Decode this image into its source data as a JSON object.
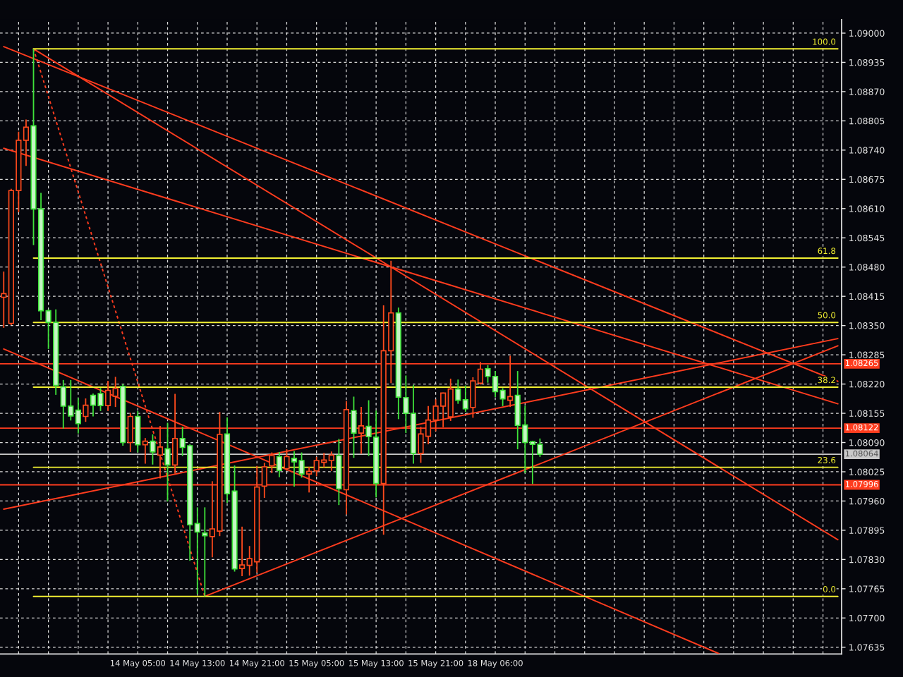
{
  "chart_data": {
    "type": "candlestick",
    "ylim": [
      1.0762,
      1.0903
    ],
    "yticks": [
      {
        "value": 1.07635,
        "label": "1.07635"
      },
      {
        "value": 1.077,
        "label": "1.07700"
      },
      {
        "value": 1.07765,
        "label": "1.07765"
      },
      {
        "value": 1.0783,
        "label": "1.07830"
      },
      {
        "value": 1.07895,
        "label": "1.07895"
      },
      {
        "value": 1.0796,
        "label": "1.07960"
      },
      {
        "value": 1.08025,
        "label": "1.08025"
      },
      {
        "value": 1.0809,
        "label": "1.08090"
      },
      {
        "value": 1.08155,
        "label": "1.08155"
      },
      {
        "value": 1.0822,
        "label": "1.08220"
      },
      {
        "value": 1.08285,
        "label": "1.08285"
      },
      {
        "value": 1.0835,
        "label": "1.08350"
      },
      {
        "value": 1.08415,
        "label": "1.08415"
      },
      {
        "value": 1.0848,
        "label": "1.08480"
      },
      {
        "value": 1.08545,
        "label": "1.08545"
      },
      {
        "value": 1.0861,
        "label": "1.08610"
      },
      {
        "value": 1.08675,
        "label": "1.08675"
      },
      {
        "value": 1.0874,
        "label": "1.08740"
      },
      {
        "value": 1.08805,
        "label": "1.08805"
      },
      {
        "value": 1.0887,
        "label": "1.08870"
      },
      {
        "value": 1.08935,
        "label": "1.08935"
      },
      {
        "value": 1.09,
        "label": "1.09000"
      }
    ],
    "categories": [
      null,
      null,
      null,
      null,
      null,
      null,
      null,
      null,
      null,
      null,
      null,
      null,
      null,
      null,
      null,
      null,
      null,
      null,
      "14 May 05:00",
      null,
      null,
      null,
      null,
      null,
      null,
      null,
      "14 May 13:00",
      null,
      null,
      null,
      null,
      null,
      null,
      null,
      "14 May 21:00",
      null,
      null,
      null,
      null,
      null,
      null,
      null,
      "15 May 05:00",
      null,
      null,
      null,
      null,
      null,
      null,
      null,
      "15 May 13:00",
      null,
      null,
      null,
      null,
      null,
      null,
      null,
      "15 May 21:00",
      null,
      null,
      null,
      null,
      null,
      null,
      null,
      "18 May 06:00",
      null,
      null,
      null,
      null,
      null,
      null,
      null,
      null,
      null,
      null,
      null,
      null,
      null,
      null,
      null,
      null,
      null,
      null,
      null,
      null,
      null,
      null,
      null,
      null,
      null,
      null,
      null,
      null,
      null,
      null,
      null,
      null,
      null,
      null,
      null,
      null,
      null,
      null,
      null,
      null,
      null,
      null,
      null,
      null,
      null,
      null
    ],
    "grid": true,
    "series": [
      {
        "type": "line",
        "color": "#ff3c1e",
        "values": [
          1.0897,
          null,
          null,
          null,
          null,
          null,
          null,
          null,
          null,
          null,
          null,
          null,
          null,
          null,
          null,
          null,
          null,
          null,
          null,
          null,
          null,
          null,
          null,
          null,
          null,
          null,
          null,
          null,
          null,
          null,
          null,
          null,
          null,
          null,
          null,
          null,
          null,
          null,
          null,
          null,
          null,
          null,
          null,
          null,
          null,
          null,
          null,
          null,
          null,
          null,
          null,
          null,
          null,
          null,
          null,
          null,
          null,
          null,
          null,
          null,
          null,
          null,
          null,
          null,
          null,
          null,
          null,
          null,
          null,
          null,
          null,
          null,
          null,
          null,
          null,
          null,
          null,
          null,
          null,
          null,
          null,
          null,
          null,
          null,
          null,
          null,
          null,
          null,
          null,
          null,
          null,
          null,
          null,
          null,
          null,
          null,
          null,
          null,
          null,
          null,
          null,
          null,
          null,
          null,
          null,
          null,
          null,
          null,
          null,
          null,
          null,
          null,
          1.08226
        ]
      },
      {
        "type": "line",
        "color": "#ff3c1e",
        "values": [
          null,
          null,
          null,
          null,
          1.08965,
          null,
          null,
          null,
          null,
          null,
          null,
          null,
          null,
          null,
          null,
          null,
          null,
          null,
          null,
          null,
          null,
          null,
          null,
          null,
          null,
          null,
          null,
          null,
          null,
          null,
          null,
          null,
          null,
          null,
          null,
          null,
          null,
          null,
          null,
          null,
          null,
          null,
          null,
          null,
          null,
          null,
          null,
          null,
          null,
          null,
          null,
          null,
          null,
          null,
          null,
          null,
          null,
          null,
          null,
          null,
          null,
          null,
          null,
          null,
          null,
          null,
          null,
          null,
          null,
          null,
          null,
          null,
          null,
          null,
          null,
          null,
          null,
          null,
          null,
          null,
          null,
          null,
          null,
          null,
          null,
          null,
          null,
          null,
          null,
          null,
          null,
          null,
          null,
          null,
          null,
          null,
          null,
          null,
          null,
          null,
          null,
          null,
          null,
          null,
          null,
          null,
          null,
          null,
          null,
          null,
          null,
          null,
          1.07874
        ]
      },
      {
        "type": "line",
        "color": "#ff3c1e",
        "values": [
          1.08744,
          null,
          null,
          null,
          null,
          null,
          null,
          null,
          null,
          null,
          null,
          null,
          null,
          null,
          null,
          null,
          null,
          null,
          null,
          null,
          null,
          null,
          null,
          null,
          null,
          null,
          null,
          null,
          null,
          null,
          null,
          null,
          null,
          null,
          null,
          null,
          null,
          null,
          null,
          null,
          null,
          null,
          null,
          null,
          null,
          null,
          null,
          null,
          null,
          null,
          null,
          null,
          null,
          null,
          null,
          null,
          null,
          null,
          null,
          null,
          null,
          null,
          null,
          null,
          null,
          null,
          null,
          null,
          null,
          null,
          null,
          null,
          null,
          null,
          null,
          null,
          null,
          null,
          null,
          null,
          null,
          null,
          null,
          null,
          null,
          null,
          null,
          null,
          null,
          null,
          null,
          null,
          null,
          null,
          null,
          null,
          null,
          null,
          null,
          null,
          null,
          null,
          null,
          null,
          null,
          null,
          null,
          null,
          null,
          null,
          null,
          null,
          1.08176
        ]
      },
      {
        "type": "line",
        "color": "#ff3c1e",
        "values": [
          1.08298,
          null,
          null,
          null,
          null,
          null,
          null,
          null,
          null,
          null,
          null,
          null,
          null,
          null,
          null,
          null,
          null,
          null,
          null,
          null,
          null,
          null,
          null,
          null,
          null,
          null,
          null,
          null,
          null,
          null,
          null,
          null,
          null,
          null,
          null,
          null,
          null,
          null,
          null,
          null,
          null,
          null,
          null,
          null,
          null,
          null,
          null,
          null,
          null,
          null,
          null,
          null,
          null,
          null,
          null,
          null,
          null,
          null,
          null,
          null,
          null,
          null,
          null,
          null,
          null,
          null,
          null,
          null,
          null,
          null,
          null,
          null,
          null,
          null,
          null,
          null,
          null,
          null,
          null,
          null,
          null,
          null,
          null,
          null,
          null,
          null,
          null,
          null,
          null,
          null,
          null,
          null,
          null,
          null,
          null,
          null,
          1.07621,
          null,
          null,
          null,
          null,
          null,
          null,
          null,
          null,
          null,
          null,
          null,
          null,
          null,
          null,
          null,
          null
        ]
      },
      {
        "type": "line",
        "color": "#ff3c1e",
        "values": [
          null,
          null,
          null,
          null,
          null,
          null,
          null,
          null,
          null,
          null,
          null,
          null,
          null,
          null,
          null,
          null,
          null,
          null,
          null,
          null,
          null,
          null,
          null,
          null,
          null,
          null,
          null,
          1.07748,
          null,
          null,
          null,
          null,
          null,
          null,
          null,
          null,
          null,
          null,
          null,
          null,
          null,
          null,
          null,
          null,
          null,
          null,
          null,
          null,
          null,
          null,
          null,
          null,
          null,
          null,
          null,
          null,
          null,
          null,
          null,
          null,
          null,
          null,
          null,
          null,
          null,
          null,
          null,
          null,
          null,
          null,
          null,
          null,
          null,
          null,
          null,
          null,
          null,
          null,
          null,
          null,
          null,
          null,
          null,
          null,
          null,
          null,
          null,
          null,
          null,
          null,
          null,
          null,
          null,
          null,
          null,
          null,
          null,
          null,
          null,
          null,
          null,
          null,
          null,
          null,
          null,
          null,
          null,
          null,
          null,
          null,
          null,
          null,
          1.08305
        ]
      },
      {
        "type": "line",
        "color": "#ff3c1e",
        "values": [
          1.07942,
          null,
          null,
          null,
          null,
          null,
          null,
          null,
          null,
          null,
          null,
          null,
          null,
          null,
          null,
          null,
          null,
          null,
          null,
          null,
          null,
          null,
          null,
          null,
          null,
          null,
          null,
          null,
          null,
          null,
          null,
          null,
          null,
          null,
          null,
          null,
          null,
          null,
          null,
          null,
          null,
          null,
          null,
          null,
          null,
          null,
          null,
          null,
          null,
          null,
          null,
          null,
          null,
          null,
          null,
          null,
          null,
          null,
          null,
          null,
          null,
          null,
          null,
          null,
          null,
          null,
          null,
          null,
          null,
          null,
          null,
          null,
          null,
          null,
          null,
          null,
          null,
          null,
          null,
          null,
          null,
          null,
          null,
          null,
          null,
          null,
          null,
          null,
          null,
          null,
          null,
          null,
          null,
          null,
          null,
          null,
          null,
          null,
          null,
          null,
          null,
          null,
          null,
          null,
          null,
          null,
          null,
          null,
          null,
          null,
          null,
          null,
          1.08321
        ]
      },
      {
        "type": "line",
        "color": "#ff3c1e",
        "line_style": "dotted",
        "values": [
          null,
          null,
          null,
          null,
          1.08965,
          null,
          null,
          null,
          null,
          null,
          null,
          null,
          null,
          null,
          null,
          null,
          null,
          null,
          null,
          null,
          null,
          null,
          null,
          null,
          null,
          null,
          null,
          1.07748,
          null,
          null,
          null,
          null,
          null,
          null,
          null,
          null,
          null,
          null,
          null,
          null,
          null,
          null,
          null,
          null,
          null,
          null,
          null,
          null,
          null,
          null,
          null,
          null,
          null,
          null,
          null,
          null,
          null,
          null,
          null,
          null,
          null,
          null,
          null,
          null,
          null,
          null,
          null,
          null,
          null,
          null,
          null,
          null,
          null,
          null,
          null,
          null,
          null,
          null,
          null,
          null,
          null,
          null,
          null,
          null,
          null,
          null,
          null,
          null,
          null,
          null,
          null,
          null,
          null,
          null,
          null,
          null,
          null,
          null,
          null,
          null,
          null,
          null,
          null,
          null,
          null,
          null,
          null,
          null,
          null,
          null,
          null,
          null,
          null
        ]
      },
      {
        "type": "line",
        "name": "100.0",
        "color": "#f2f032",
        "values": [
          null,
          null,
          null,
          null,
          1.08965,
          null,
          null,
          null,
          null,
          null,
          null,
          null,
          null,
          null,
          null,
          null,
          null,
          null,
          null,
          null,
          null,
          null,
          null,
          null,
          null,
          null,
          null,
          null,
          null,
          null,
          null,
          null,
          null,
          null,
          null,
          null,
          null,
          null,
          null,
          null,
          null,
          null,
          null,
          null,
          null,
          null,
          null,
          null,
          null,
          null,
          null,
          null,
          null,
          null,
          null,
          null,
          null,
          null,
          null,
          null,
          null,
          null,
          null,
          null,
          null,
          null,
          null,
          null,
          null,
          null,
          null,
          null,
          null,
          null,
          null,
          null,
          null,
          null,
          null,
          null,
          null,
          null,
          null,
          null,
          null,
          null,
          null,
          null,
          null,
          null,
          null,
          null,
          null,
          null,
          null,
          null,
          null,
          null,
          null,
          null,
          null,
          null,
          null,
          null,
          null,
          null,
          null,
          null,
          null,
          null,
          null,
          null,
          1.08965
        ]
      },
      {
        "type": "line",
        "name": "61.8",
        "color": "#f2f032",
        "values": [
          null,
          null,
          null,
          null,
          1.085,
          null,
          null,
          null,
          null,
          null,
          null,
          null,
          null,
          null,
          null,
          null,
          null,
          null,
          null,
          null,
          null,
          null,
          null,
          null,
          null,
          null,
          null,
          null,
          null,
          null,
          null,
          null,
          null,
          null,
          null,
          null,
          null,
          null,
          null,
          null,
          null,
          null,
          null,
          null,
          null,
          null,
          null,
          null,
          null,
          null,
          null,
          null,
          null,
          null,
          null,
          null,
          null,
          null,
          null,
          null,
          null,
          null,
          null,
          null,
          null,
          null,
          null,
          null,
          null,
          null,
          null,
          null,
          null,
          null,
          null,
          null,
          null,
          null,
          null,
          null,
          null,
          null,
          null,
          null,
          null,
          null,
          null,
          null,
          null,
          null,
          null,
          null,
          null,
          null,
          null,
          null,
          null,
          null,
          null,
          null,
          null,
          null,
          null,
          null,
          null,
          null,
          null,
          null,
          null,
          null,
          null,
          null,
          1.085
        ]
      },
      {
        "type": "line",
        "name": "50.0",
        "color": "#f2f032",
        "values": [
          null,
          null,
          null,
          null,
          1.08357,
          null,
          null,
          null,
          null,
          null,
          null,
          null,
          null,
          null,
          null,
          null,
          null,
          null,
          null,
          null,
          null,
          null,
          null,
          null,
          null,
          null,
          null,
          null,
          null,
          null,
          null,
          null,
          null,
          null,
          null,
          null,
          null,
          null,
          null,
          null,
          null,
          null,
          null,
          null,
          null,
          null,
          null,
          null,
          null,
          null,
          null,
          null,
          null,
          null,
          null,
          null,
          null,
          null,
          null,
          null,
          null,
          null,
          null,
          null,
          null,
          null,
          null,
          null,
          null,
          null,
          null,
          null,
          null,
          null,
          null,
          null,
          null,
          null,
          null,
          null,
          null,
          null,
          null,
          null,
          null,
          null,
          null,
          null,
          null,
          null,
          null,
          null,
          null,
          null,
          null,
          null,
          null,
          null,
          null,
          null,
          null,
          null,
          null,
          null,
          null,
          null,
          null,
          null,
          null,
          null,
          null,
          null,
          1.08357
        ]
      },
      {
        "type": "line",
        "name": "38.2",
        "color": "#f2f032",
        "values": [
          null,
          null,
          null,
          null,
          1.08213,
          null,
          null,
          null,
          null,
          null,
          null,
          null,
          null,
          null,
          null,
          null,
          null,
          null,
          null,
          null,
          null,
          null,
          null,
          null,
          null,
          null,
          null,
          null,
          null,
          null,
          null,
          null,
          null,
          null,
          null,
          null,
          null,
          null,
          null,
          null,
          null,
          null,
          null,
          null,
          null,
          null,
          null,
          null,
          null,
          null,
          null,
          null,
          null,
          null,
          null,
          null,
          null,
          null,
          null,
          null,
          null,
          null,
          null,
          null,
          null,
          null,
          null,
          null,
          null,
          null,
          null,
          null,
          null,
          null,
          null,
          null,
          null,
          null,
          null,
          null,
          null,
          null,
          null,
          null,
          null,
          null,
          null,
          null,
          null,
          null,
          null,
          null,
          null,
          null,
          null,
          null,
          null,
          null,
          null,
          null,
          null,
          null,
          null,
          null,
          null,
          null,
          null,
          null,
          null,
          null,
          null,
          null,
          1.08213
        ]
      },
      {
        "type": "line",
        "name": "23.6",
        "color": "#f2f032",
        "values": [
          null,
          null,
          null,
          null,
          1.08035,
          null,
          null,
          null,
          null,
          null,
          null,
          null,
          null,
          null,
          null,
          null,
          null,
          null,
          null,
          null,
          null,
          null,
          null,
          null,
          null,
          null,
          null,
          null,
          null,
          null,
          null,
          null,
          null,
          null,
          null,
          null,
          null,
          null,
          null,
          null,
          null,
          null,
          null,
          null,
          null,
          null,
          null,
          null,
          null,
          null,
          null,
          null,
          null,
          null,
          null,
          null,
          null,
          null,
          null,
          null,
          null,
          null,
          null,
          null,
          null,
          null,
          null,
          null,
          null,
          null,
          null,
          null,
          null,
          null,
          null,
          null,
          null,
          null,
          null,
          null,
          null,
          null,
          null,
          null,
          null,
          null,
          null,
          null,
          null,
          null,
          null,
          null,
          null,
          null,
          null,
          null,
          null,
          null,
          null,
          null,
          null,
          null,
          null,
          null,
          null,
          null,
          null,
          null,
          null,
          null,
          null,
          null,
          1.08035
        ]
      },
      {
        "type": "line",
        "name": "0.0",
        "color": "#f2f032",
        "values": [
          null,
          null,
          null,
          null,
          1.07748,
          null,
          null,
          null,
          null,
          null,
          null,
          null,
          null,
          null,
          null,
          null,
          null,
          null,
          null,
          null,
          null,
          null,
          null,
          null,
          null,
          null,
          null,
          null,
          null,
          null,
          null,
          null,
          null,
          null,
          null,
          null,
          null,
          null,
          null,
          null,
          null,
          null,
          null,
          null,
          null,
          null,
          null,
          null,
          null,
          null,
          null,
          null,
          null,
          null,
          null,
          null,
          null,
          null,
          null,
          null,
          null,
          null,
          null,
          null,
          null,
          null,
          null,
          null,
          null,
          null,
          null,
          null,
          null,
          null,
          null,
          null,
          null,
          null,
          null,
          null,
          null,
          null,
          null,
          null,
          null,
          null,
          null,
          null,
          null,
          null,
          null,
          null,
          null,
          null,
          null,
          null,
          null,
          null,
          null,
          null,
          null,
          null,
          null,
          null,
          null,
          null,
          null,
          null,
          null,
          null,
          null,
          null,
          1.07748
        ]
      },
      {
        "color": "#ff4a1c",
        "ohlc": [
          [
            1.08413,
            1.0847,
            1.08345,
            1.08421
          ],
          [
            1.08355,
            1.08654,
            1.08351,
            1.0865
          ],
          [
            1.0865,
            1.08781,
            1.08602,
            1.08762
          ],
          [
            1.08762,
            1.08808,
            1.08705,
            1.08791
          ],
          null,
          null,
          null,
          null,
          null,
          null,
          null,
          [
            1.08148,
            1.08188,
            1.08136,
            1.08173
          ],
          null,
          null,
          [
            1.08172,
            1.08227,
            1.0816,
            1.08206
          ],
          [
            1.08193,
            1.08236,
            1.08169,
            1.0821
          ],
          null,
          [
            1.0809,
            1.08156,
            1.08069,
            1.08148
          ],
          null,
          [
            1.08085,
            1.081,
            1.08043,
            1.08093
          ],
          null,
          [
            1.08062,
            1.08127,
            1.0801,
            1.0808
          ],
          null,
          [
            1.0804,
            1.08198,
            1.08021,
            1.08099
          ],
          null,
          null,
          null,
          null,
          [
            1.07881,
            1.08004,
            1.07835,
            1.07898
          ],
          [
            1.07893,
            1.08158,
            1.07882,
            1.08108
          ],
          null,
          null,
          [
            1.0781,
            1.07903,
            1.07793,
            1.07818
          ],
          [
            1.07817,
            1.0786,
            1.07794,
            1.07832
          ],
          [
            1.07825,
            1.08038,
            1.07801,
            1.07991
          ],
          [
            1.07993,
            1.08045,
            1.07967,
            1.08036
          ],
          [
            1.08038,
            1.08068,
            1.08022,
            1.08061
          ],
          null,
          [
            1.08032,
            1.08075,
            1.08027,
            1.08059
          ],
          null,
          null,
          [
            1.0802,
            1.08036,
            1.07979,
            1.08026
          ],
          [
            1.08027,
            1.08058,
            1.08015,
            1.0805
          ],
          [
            1.08046,
            1.08067,
            1.08035,
            1.08051
          ],
          [
            1.0805,
            1.0807,
            1.08027,
            1.08062
          ],
          null,
          [
            1.07985,
            1.08182,
            1.0793,
            1.08163
          ],
          null,
          [
            1.08111,
            1.08169,
            1.08065,
            1.08127
          ],
          null,
          null,
          [
            1.07999,
            1.08395,
            1.07885,
            1.08294
          ],
          [
            1.08294,
            1.08494,
            1.08222,
            1.08378
          ],
          null,
          null,
          null,
          [
            1.08066,
            1.08125,
            1.08045,
            1.08109
          ],
          [
            1.08104,
            1.08171,
            1.08086,
            1.0814
          ],
          [
            1.0814,
            1.08186,
            1.08115,
            1.08171
          ],
          [
            1.08171,
            1.08201,
            1.08124,
            1.082
          ],
          [
            1.08147,
            1.08232,
            1.08138,
            1.08209
          ],
          null,
          null,
          [
            1.08168,
            1.08235,
            1.08145,
            1.08227
          ],
          [
            1.08222,
            1.08269,
            1.08219,
            1.08253
          ],
          null,
          null,
          null,
          [
            1.08184,
            1.08283,
            1.08169,
            1.08192
          ],
          null,
          null,
          null,
          null,
          null,
          null,
          null,
          null,
          null,
          null,
          null,
          null,
          null,
          null,
          null,
          null,
          null,
          null,
          null,
          null,
          null,
          null,
          null,
          null,
          null,
          null,
          null,
          null,
          null,
          null,
          null,
          null,
          null,
          null,
          null,
          null,
          null,
          null,
          null,
          null,
          null,
          null,
          null,
          null
        ]
      },
      {
        "color": "#3fe23a",
        "ohlc": [
          null,
          null,
          null,
          null,
          [
            1.08794,
            1.08965,
            1.08529,
            1.08609
          ],
          [
            1.08609,
            1.08645,
            1.08362,
            1.08383
          ],
          [
            1.08383,
            1.08386,
            1.08298,
            1.08357
          ],
          [
            1.08357,
            1.08386,
            1.08196,
            1.08217
          ],
          [
            1.08214,
            1.08229,
            1.08121,
            1.08171
          ],
          [
            1.08171,
            1.08229,
            1.08139,
            1.08149
          ],
          [
            1.08162,
            1.08189,
            1.0811,
            1.08132
          ],
          null,
          [
            1.08195,
            1.08199,
            1.08148,
            1.08173
          ],
          [
            1.08199,
            1.08211,
            1.0816,
            1.08172
          ],
          null,
          null,
          [
            1.08215,
            1.0822,
            1.08083,
            1.0809
          ],
          null,
          [
            1.08148,
            1.0816,
            1.08068,
            1.08085
          ],
          null,
          [
            1.08093,
            1.08108,
            1.08041,
            1.08069
          ],
          null,
          [
            1.08076,
            1.08134,
            1.07959,
            1.0804
          ],
          null,
          [
            1.08099,
            1.08125,
            1.0806,
            1.08079
          ],
          [
            1.08083,
            1.08086,
            1.07827,
            1.07907
          ],
          [
            1.0791,
            1.07946,
            1.07753,
            1.07891
          ],
          [
            1.07889,
            1.07946,
            1.07748,
            1.07883
          ],
          null,
          null,
          [
            1.08109,
            1.08146,
            1.07956,
            1.07976
          ],
          [
            1.07982,
            1.08039,
            1.07803,
            1.07809
          ],
          null,
          null,
          null,
          null,
          null,
          [
            1.08059,
            1.08069,
            1.08013,
            1.08028
          ],
          null,
          [
            1.08055,
            1.08071,
            1.07992,
            1.08047
          ],
          [
            1.0805,
            1.08068,
            1.08012,
            1.0802
          ],
          null,
          null,
          null,
          null,
          [
            1.08061,
            1.08098,
            1.07951,
            1.07987
          ],
          null,
          [
            1.08161,
            1.08192,
            1.08056,
            1.08111
          ],
          null,
          [
            1.08126,
            1.08184,
            1.0806,
            1.08103
          ],
          [
            1.08102,
            1.08161,
            1.07968,
            1.07999
          ],
          null,
          null,
          [
            1.08378,
            1.0839,
            1.08142,
            1.08191
          ],
          [
            1.0819,
            1.08239,
            1.08111,
            1.08155
          ],
          [
            1.08155,
            1.08218,
            1.08043,
            1.08066
          ],
          null,
          null,
          null,
          null,
          null,
          [
            1.08209,
            1.0823,
            1.08176,
            1.08184
          ],
          [
            1.08185,
            1.08217,
            1.08158,
            1.08165
          ],
          null,
          null,
          [
            1.08254,
            1.08262,
            1.08223,
            1.08237
          ],
          [
            1.08237,
            1.08249,
            1.08191,
            1.08203
          ],
          [
            1.08206,
            1.08211,
            1.08171,
            1.08187
          ],
          null,
          [
            1.08195,
            1.08249,
            1.08075,
            1.08128
          ],
          [
            1.08129,
            1.08172,
            1.08022,
            1.0809
          ],
          [
            1.08092,
            1.08094,
            1.07998,
            1.08086
          ],
          [
            1.08086,
            1.08099,
            1.08058,
            1.08064
          ],
          null,
          null,
          null,
          null,
          null,
          null,
          null,
          null,
          null,
          null,
          null,
          null,
          null,
          null,
          null,
          null,
          null,
          null,
          null,
          null,
          null,
          null,
          null,
          null,
          null,
          null,
          null,
          null,
          null,
          null,
          null,
          null,
          null,
          null,
          null,
          null,
          null,
          null,
          null,
          null
        ]
      }
    ],
    "ref_lines": [
      {
        "axis": "y",
        "value": 1.08265,
        "label": "1.08265",
        "color": "#ff3c1e"
      },
      {
        "axis": "y",
        "value": 1.08122,
        "label": "1.08122",
        "color": "#ff3c1e"
      },
      {
        "axis": "y",
        "value": 1.08064,
        "label": "1.08064",
        "color": "#c8c8c8"
      },
      {
        "axis": "y",
        "value": 1.07996,
        "label": "1.07996",
        "color": "#ff3c1e"
      }
    ]
  }
}
